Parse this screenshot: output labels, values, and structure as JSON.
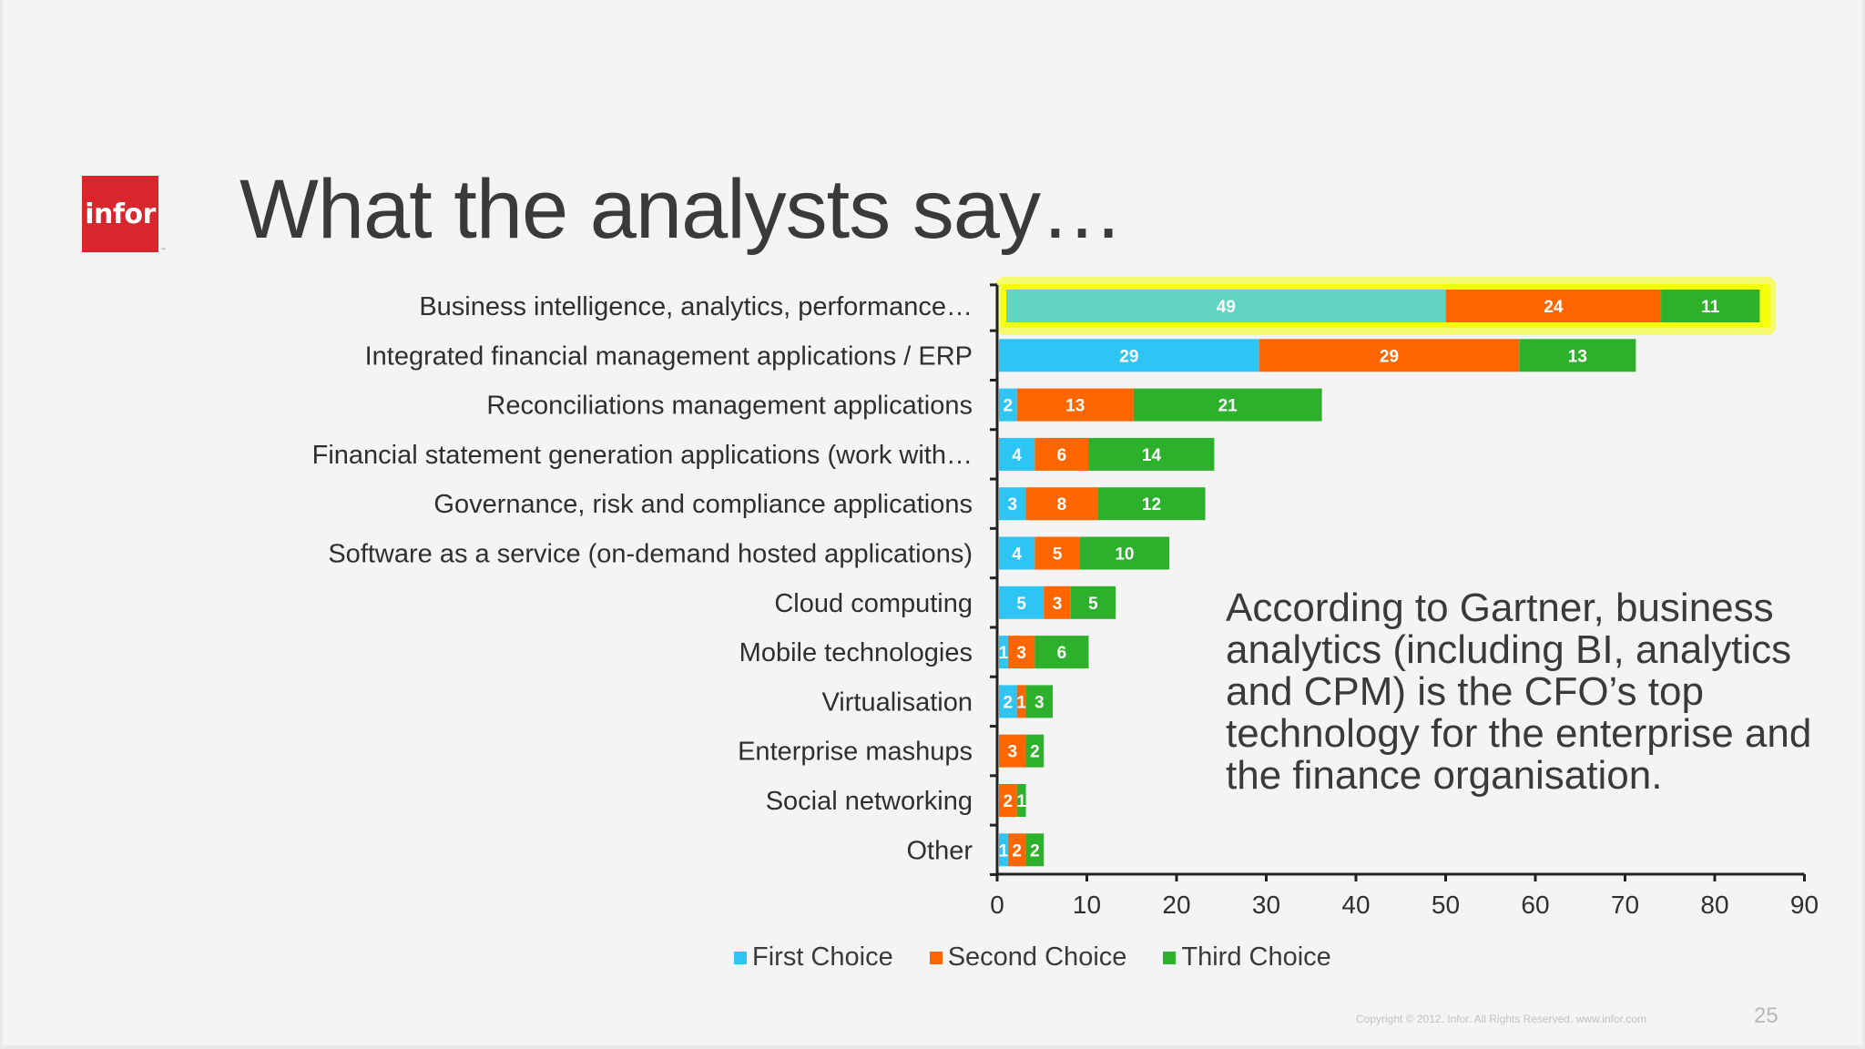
{
  "slide": {
    "title": "What the analysts say…",
    "logo_text": "infor",
    "quote": "According to Gartner, business analytics (including BI, analytics and CPM) is the CFO’s top technology for the enterprise and the finance organisation.",
    "footer": "Copyright © 2012. Infor. All Rights Reserved. www.infor.com",
    "page_number": "25"
  },
  "colors": {
    "first": "#2ec5f5",
    "second": "#ff6600",
    "third": "#2db12d",
    "highlight": "#f6ff00",
    "highlight_first": "#62d4c2",
    "logo_red": "#d7262c"
  },
  "chart_data": {
    "type": "bar",
    "orientation": "horizontal",
    "stacked": true,
    "categories": [
      "Business intelligence, analytics, performance…",
      "Integrated financial management applications / ERP",
      "Reconciliations management applications",
      "Financial statement generation applications (work with…",
      "Governance, risk and compliance applications",
      "Software as a service (on-demand hosted applications)",
      "Cloud computing",
      "Mobile technologies",
      "Virtualisation",
      "Enterprise mashups",
      "Social networking",
      "Other"
    ],
    "series": [
      {
        "name": "First Choice",
        "values": [
          49,
          29,
          2,
          4,
          3,
          4,
          5,
          1,
          2,
          0,
          0,
          1
        ]
      },
      {
        "name": "Second Choice",
        "values": [
          24,
          29,
          13,
          6,
          8,
          5,
          3,
          3,
          1,
          3,
          2,
          2
        ]
      },
      {
        "name": "Third Choice",
        "values": [
          11,
          13,
          21,
          14,
          12,
          10,
          5,
          6,
          3,
          2,
          1,
          2
        ]
      }
    ],
    "xlim": [
      0,
      90
    ],
    "xticks": [
      0,
      10,
      20,
      30,
      40,
      50,
      60,
      70,
      80,
      90
    ],
    "highlighted_category": "Business intelligence, analytics, performance…",
    "legend_position": "bottom",
    "grid": false
  }
}
